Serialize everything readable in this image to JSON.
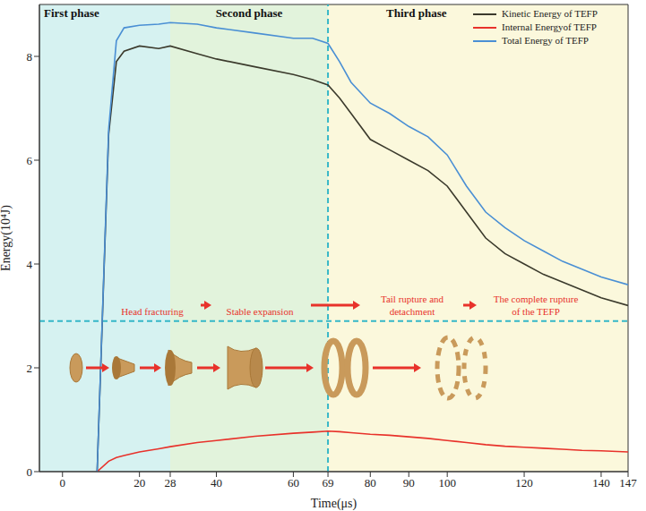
{
  "chart_data": {
    "type": "line",
    "x_label": "Time(μs)",
    "y_label": "Energy(10⁴J)",
    "xlim": [
      -6,
      147
    ],
    "ylim": [
      0,
      9
    ],
    "xticks": [
      0,
      20,
      28,
      40,
      60,
      69,
      80,
      90,
      100,
      120,
      140,
      147
    ],
    "yticks": [
      0,
      2,
      4,
      6,
      8
    ],
    "legend": "upper right",
    "x": [
      9,
      12,
      14,
      16,
      20,
      25,
      28,
      35,
      40,
      50,
      60,
      65,
      69,
      72,
      75,
      80,
      85,
      90,
      95,
      100,
      105,
      110,
      115,
      120,
      125,
      130,
      135,
      140,
      147
    ],
    "series": [
      {
        "name": "Kinetic Energy of TEFP",
        "color": "#3b3a2c",
        "values": [
          0,
          6.5,
          7.9,
          8.1,
          8.2,
          8.15,
          8.2,
          8.05,
          7.95,
          7.8,
          7.65,
          7.55,
          7.45,
          7.2,
          6.9,
          6.4,
          6.2,
          6.0,
          5.8,
          5.5,
          5.0,
          4.5,
          4.2,
          4.0,
          3.8,
          3.65,
          3.5,
          3.35,
          3.2
        ]
      },
      {
        "name": "Internal Energyof TEFP",
        "color": "#e8322b",
        "values": [
          0,
          0.2,
          0.27,
          0.31,
          0.38,
          0.44,
          0.48,
          0.56,
          0.6,
          0.68,
          0.74,
          0.76,
          0.78,
          0.77,
          0.75,
          0.72,
          0.7,
          0.67,
          0.64,
          0.6,
          0.56,
          0.52,
          0.49,
          0.47,
          0.45,
          0.43,
          0.41,
          0.4,
          0.38
        ]
      },
      {
        "name": "Total Energy of TEFP",
        "color": "#4a8fd4",
        "values": [
          0,
          6.6,
          8.3,
          8.55,
          8.6,
          8.62,
          8.65,
          8.62,
          8.55,
          8.45,
          8.35,
          8.35,
          8.25,
          7.9,
          7.5,
          7.1,
          6.9,
          6.65,
          6.45,
          6.1,
          5.5,
          5.0,
          4.7,
          4.45,
          4.25,
          4.05,
          3.9,
          3.75,
          3.6
        ]
      }
    ],
    "phases": [
      {
        "name": "First phase",
        "start": -6,
        "end": 28,
        "color": "#d6f2f1"
      },
      {
        "name": "Second phase",
        "start": 28,
        "end": 69,
        "color": "#e2f3dc"
      },
      {
        "name": "Third phase",
        "start": 69,
        "end": 147,
        "color": "#fbf8dc"
      }
    ],
    "divider_y": 2.9,
    "stages": [
      "Head fracturing",
      "Stable expansion",
      "Tail rupture and detachment",
      "The complete rupture of the TEFP"
    ]
  }
}
